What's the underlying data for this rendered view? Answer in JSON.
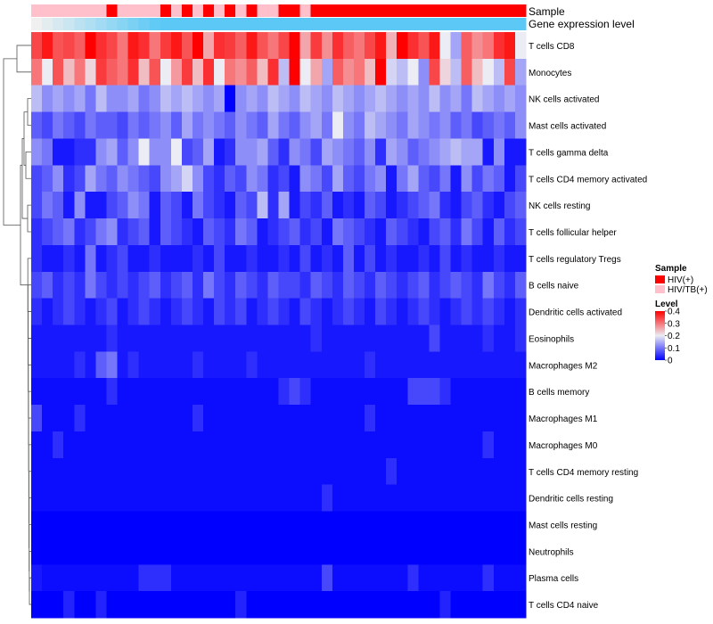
{
  "chart_data": {
    "type": "heatmap",
    "title": "",
    "annotation_tracks": [
      {
        "name": "Sample"
      },
      {
        "name": "Gene expression level"
      }
    ],
    "sample_groups": [
      "HIV/TB(+)",
      "HIV/TB(+)",
      "HIV/TB(+)",
      "HIV/TB(+)",
      "HIV/TB(+)",
      "HIV/TB(+)",
      "HIV/TB(+)",
      "HIV(+)",
      "HIV/TB(+)",
      "HIV/TB(+)",
      "HIV/TB(+)",
      "HIV/TB(+)",
      "HIV(+)",
      "HIV/TB(+)",
      "HIV(+)",
      "HIV/TB(+)",
      "HIV(+)",
      "HIV/TB(+)",
      "HIV(+)",
      "HIV/TB(+)",
      "HIV(+)",
      "HIV/TB(+)",
      "HIV/TB(+)",
      "HIV(+)",
      "HIV(+)",
      "HIV/TB(+)",
      "HIV(+)",
      "HIV(+)",
      "HIV(+)",
      "HIV(+)",
      "HIV(+)",
      "HIV(+)",
      "HIV(+)",
      "HIV(+)",
      "HIV(+)",
      "HIV(+)",
      "HIV(+)",
      "HIV(+)",
      "HIV(+)",
      "HIV(+)",
      "HIV(+)",
      "HIV(+)",
      "HIV(+)",
      "HIV(+)",
      "HIV(+)",
      "HIV(+)"
    ],
    "rows": [
      "T cells CD8",
      "Monocytes",
      "NK cells activated",
      "Mast cells activated",
      "T cells gamma delta",
      "T cells CD4 memory activated",
      "NK cells resting",
      "T cells follicular helper",
      "T cells regulatory  Tregs",
      "B cells naive",
      "Dendritic cells activated",
      "Eosinophils",
      "Macrophages M2",
      "B cells memory",
      "Macrophages M1",
      "Macrophages M0",
      "T cells CD4 memory resting",
      "Dendritic cells resting",
      "Mast cells resting",
      "Neutrophils",
      "Plasma cells",
      "T cells CD4 naive"
    ],
    "values": [
      [
        0.34,
        0.38,
        0.33,
        0.34,
        0.32,
        0.4,
        0.36,
        0.34,
        0.3,
        0.38,
        0.36,
        0.3,
        0.35,
        0.38,
        0.33,
        0.4,
        0.26,
        0.36,
        0.35,
        0.32,
        0.38,
        0.33,
        0.3,
        0.34,
        0.4,
        0.26,
        0.35,
        0.28,
        0.36,
        0.32,
        0.3,
        0.34,
        0.38,
        0.25,
        0.4,
        0.36,
        0.33,
        0.38,
        0.2,
        0.14,
        0.32,
        0.28,
        0.3,
        0.36,
        0.38,
        0.2
      ],
      [
        0.3,
        0.2,
        0.33,
        0.24,
        0.3,
        0.22,
        0.35,
        0.32,
        0.3,
        0.36,
        0.24,
        0.33,
        0.2,
        0.27,
        0.35,
        0.24,
        0.36,
        0.2,
        0.3,
        0.28,
        0.32,
        0.24,
        0.36,
        0.16,
        0.4,
        0.2,
        0.26,
        0.14,
        0.32,
        0.28,
        0.3,
        0.24,
        0.4,
        0.18,
        0.16,
        0.2,
        0.12,
        0.34,
        0.22,
        0.16,
        0.32,
        0.24,
        0.2,
        0.16,
        0.34,
        0.14
      ],
      [
        0.16,
        0.12,
        0.14,
        0.12,
        0.14,
        0.1,
        0.16,
        0.12,
        0.12,
        0.14,
        0.1,
        0.12,
        0.16,
        0.14,
        0.16,
        0.14,
        0.12,
        0.14,
        0.0,
        0.12,
        0.14,
        0.12,
        0.16,
        0.14,
        0.12,
        0.16,
        0.14,
        0.12,
        0.16,
        0.14,
        0.12,
        0.14,
        0.16,
        0.14,
        0.12,
        0.14,
        0.12,
        0.16,
        0.12,
        0.14,
        0.1,
        0.16,
        0.14,
        0.12,
        0.14,
        0.12
      ],
      [
        0.08,
        0.06,
        0.1,
        0.08,
        0.06,
        0.1,
        0.08,
        0.08,
        0.06,
        0.1,
        0.08,
        0.1,
        0.12,
        0.08,
        0.14,
        0.1,
        0.12,
        0.1,
        0.08,
        0.12,
        0.1,
        0.08,
        0.14,
        0.1,
        0.08,
        0.12,
        0.14,
        0.1,
        0.2,
        0.12,
        0.1,
        0.16,
        0.14,
        0.12,
        0.1,
        0.14,
        0.12,
        0.1,
        0.12,
        0.08,
        0.1,
        0.06,
        0.08,
        0.1,
        0.08,
        0.12
      ],
      [
        0.12,
        0.1,
        0.02,
        0.02,
        0.04,
        0.04,
        0.12,
        0.14,
        0.08,
        0.12,
        0.2,
        0.12,
        0.12,
        0.2,
        0.06,
        0.08,
        0.14,
        0.02,
        0.04,
        0.12,
        0.12,
        0.14,
        0.08,
        0.04,
        0.12,
        0.1,
        0.06,
        0.14,
        0.12,
        0.1,
        0.08,
        0.12,
        0.04,
        0.14,
        0.12,
        0.08,
        0.1,
        0.12,
        0.14,
        0.16,
        0.14,
        0.14,
        0.02,
        0.12,
        0.02,
        0.02
      ],
      [
        0.06,
        0.08,
        0.12,
        0.04,
        0.06,
        0.14,
        0.1,
        0.08,
        0.12,
        0.1,
        0.08,
        0.06,
        0.12,
        0.14,
        0.18,
        0.12,
        0.06,
        0.04,
        0.08,
        0.06,
        0.12,
        0.1,
        0.04,
        0.06,
        0.02,
        0.12,
        0.1,
        0.06,
        0.14,
        0.08,
        0.06,
        0.1,
        0.12,
        0.02,
        0.1,
        0.14,
        0.08,
        0.06,
        0.1,
        0.02,
        0.12,
        0.06,
        0.1,
        0.08,
        0.02,
        0.06
      ],
      [
        0.06,
        0.1,
        0.08,
        0.02,
        0.12,
        0.02,
        0.02,
        0.06,
        0.08,
        0.12,
        0.1,
        0.02,
        0.08,
        0.06,
        0.02,
        0.1,
        0.06,
        0.04,
        0.02,
        0.08,
        0.06,
        0.16,
        0.04,
        0.14,
        0.02,
        0.06,
        0.04,
        0.08,
        0.02,
        0.04,
        0.02,
        0.08,
        0.06,
        0.02,
        0.04,
        0.06,
        0.08,
        0.1,
        0.04,
        0.02,
        0.06,
        0.08,
        0.04,
        0.02,
        0.06,
        0.08
      ],
      [
        0.04,
        0.06,
        0.08,
        0.1,
        0.04,
        0.06,
        0.1,
        0.12,
        0.04,
        0.06,
        0.08,
        0.02,
        0.08,
        0.06,
        0.04,
        0.02,
        0.08,
        0.06,
        0.04,
        0.1,
        0.08,
        0.02,
        0.04,
        0.06,
        0.08,
        0.04,
        0.06,
        0.02,
        0.1,
        0.08,
        0.06,
        0.04,
        0.02,
        0.08,
        0.06,
        0.04,
        0.02,
        0.06,
        0.08,
        0.04,
        0.1,
        0.06,
        0.02,
        0.08,
        0.04,
        0.06
      ],
      [
        0.04,
        0.02,
        0.02,
        0.04,
        0.02,
        0.1,
        0.02,
        0.04,
        0.06,
        0.02,
        0.02,
        0.04,
        0.02,
        0.02,
        0.02,
        0.04,
        0.02,
        0.06,
        0.02,
        0.02,
        0.04,
        0.02,
        0.02,
        0.04,
        0.02,
        0.06,
        0.02,
        0.04,
        0.02,
        0.08,
        0.02,
        0.06,
        0.02,
        0.04,
        0.02,
        0.02,
        0.04,
        0.02,
        0.06,
        0.02,
        0.04,
        0.02,
        0.02,
        0.04,
        0.02,
        0.02
      ],
      [
        0.06,
        0.08,
        0.04,
        0.06,
        0.04,
        0.1,
        0.06,
        0.04,
        0.06,
        0.04,
        0.06,
        0.08,
        0.04,
        0.06,
        0.08,
        0.04,
        0.1,
        0.06,
        0.04,
        0.08,
        0.06,
        0.04,
        0.08,
        0.06,
        0.06,
        0.04,
        0.08,
        0.06,
        0.04,
        0.08,
        0.06,
        0.04,
        0.08,
        0.06,
        0.04,
        0.06,
        0.08,
        0.04,
        0.06,
        0.08,
        0.06,
        0.04,
        0.1,
        0.06,
        0.04,
        0.08
      ],
      [
        0.04,
        0.02,
        0.04,
        0.06,
        0.04,
        0.02,
        0.04,
        0.06,
        0.02,
        0.04,
        0.06,
        0.04,
        0.02,
        0.04,
        0.06,
        0.04,
        0.02,
        0.06,
        0.04,
        0.06,
        0.02,
        0.04,
        0.06,
        0.04,
        0.02,
        0.06,
        0.04,
        0.02,
        0.04,
        0.06,
        0.04,
        0.02,
        0.06,
        0.04,
        0.02,
        0.04,
        0.06,
        0.04,
        0.02,
        0.04,
        0.06,
        0.04,
        0.06,
        0.04,
        0.02,
        0.04
      ],
      [
        0.02,
        0.02,
        0.02,
        0.02,
        0.02,
        0.02,
        0.02,
        0.04,
        0.02,
        0.02,
        0.02,
        0.02,
        0.02,
        0.02,
        0.02,
        0.02,
        0.02,
        0.02,
        0.02,
        0.02,
        0.02,
        0.02,
        0.02,
        0.02,
        0.02,
        0.02,
        0.04,
        0.02,
        0.02,
        0.02,
        0.02,
        0.02,
        0.02,
        0.02,
        0.02,
        0.02,
        0.02,
        0.06,
        0.02,
        0.02,
        0.02,
        0.02,
        0.04,
        0.02,
        0.02,
        0.04
      ],
      [
        0.02,
        0.02,
        0.02,
        0.02,
        0.04,
        0.02,
        0.08,
        0.1,
        0.02,
        0.04,
        0.02,
        0.02,
        0.02,
        0.02,
        0.02,
        0.04,
        0.02,
        0.02,
        0.02,
        0.02,
        0.04,
        0.02,
        0.02,
        0.02,
        0.02,
        0.02,
        0.02,
        0.02,
        0.02,
        0.02,
        0.02,
        0.04,
        0.02,
        0.02,
        0.02,
        0.02,
        0.02,
        0.02,
        0.02,
        0.02,
        0.02,
        0.02,
        0.02,
        0.02,
        0.02,
        0.02
      ],
      [
        0.01,
        0.01,
        0.01,
        0.01,
        0.01,
        0.01,
        0.01,
        0.04,
        0.01,
        0.01,
        0.01,
        0.01,
        0.01,
        0.01,
        0.01,
        0.01,
        0.01,
        0.01,
        0.01,
        0.01,
        0.01,
        0.01,
        0.01,
        0.04,
        0.06,
        0.04,
        0.01,
        0.01,
        0.01,
        0.01,
        0.01,
        0.01,
        0.01,
        0.01,
        0.01,
        0.06,
        0.06,
        0.06,
        0.04,
        0.01,
        0.01,
        0.01,
        0.01,
        0.01,
        0.01,
        0.01
      ],
      [
        0.06,
        0.01,
        0.01,
        0.01,
        0.04,
        0.01,
        0.01,
        0.01,
        0.01,
        0.01,
        0.01,
        0.01,
        0.01,
        0.01,
        0.01,
        0.04,
        0.01,
        0.01,
        0.01,
        0.01,
        0.01,
        0.01,
        0.01,
        0.01,
        0.01,
        0.01,
        0.01,
        0.01,
        0.01,
        0.01,
        0.01,
        0.04,
        0.01,
        0.01,
        0.01,
        0.01,
        0.01,
        0.01,
        0.01,
        0.01,
        0.01,
        0.01,
        0.01,
        0.01,
        0.01,
        0.01
      ],
      [
        0.01,
        0.01,
        0.04,
        0.01,
        0.01,
        0.01,
        0.01,
        0.01,
        0.01,
        0.01,
        0.01,
        0.01,
        0.01,
        0.01,
        0.01,
        0.01,
        0.01,
        0.01,
        0.01,
        0.01,
        0.01,
        0.01,
        0.01,
        0.01,
        0.01,
        0.01,
        0.01,
        0.01,
        0.01,
        0.01,
        0.01,
        0.01,
        0.01,
        0.01,
        0.01,
        0.01,
        0.01,
        0.01,
        0.01,
        0.01,
        0.01,
        0.01,
        0.04,
        0.01,
        0.01,
        0.01
      ],
      [
        0.01,
        0.01,
        0.01,
        0.01,
        0.01,
        0.01,
        0.01,
        0.01,
        0.01,
        0.01,
        0.01,
        0.01,
        0.01,
        0.01,
        0.01,
        0.01,
        0.01,
        0.01,
        0.01,
        0.01,
        0.01,
        0.01,
        0.01,
        0.01,
        0.01,
        0.01,
        0.01,
        0.01,
        0.01,
        0.01,
        0.01,
        0.01,
        0.01,
        0.04,
        0.01,
        0.01,
        0.01,
        0.01,
        0.01,
        0.01,
        0.01,
        0.01,
        0.01,
        0.01,
        0.01,
        0.01
      ],
      [
        0.01,
        0.01,
        0.01,
        0.01,
        0.01,
        0.01,
        0.01,
        0.01,
        0.01,
        0.01,
        0.01,
        0.01,
        0.01,
        0.01,
        0.01,
        0.01,
        0.01,
        0.01,
        0.01,
        0.01,
        0.01,
        0.01,
        0.01,
        0.01,
        0.01,
        0.01,
        0.01,
        0.04,
        0.01,
        0.01,
        0.01,
        0.01,
        0.01,
        0.01,
        0.01,
        0.01,
        0.01,
        0.01,
        0.01,
        0.01,
        0.01,
        0.01,
        0.01,
        0.01,
        0.01,
        0.01
      ],
      [
        0.0,
        0.0,
        0.0,
        0.0,
        0.0,
        0.0,
        0.0,
        0.0,
        0.0,
        0.0,
        0.0,
        0.0,
        0.0,
        0.0,
        0.0,
        0.0,
        0.0,
        0.0,
        0.0,
        0.0,
        0.0,
        0.0,
        0.0,
        0.0,
        0.0,
        0.0,
        0.0,
        0.0,
        0.0,
        0.0,
        0.0,
        0.0,
        0.0,
        0.0,
        0.0,
        0.0,
        0.0,
        0.0,
        0.0,
        0.0,
        0.0,
        0.0,
        0.0,
        0.0,
        0.0,
        0.0
      ],
      [
        0.0,
        0.0,
        0.0,
        0.0,
        0.0,
        0.0,
        0.0,
        0.0,
        0.0,
        0.0,
        0.0,
        0.0,
        0.0,
        0.0,
        0.0,
        0.0,
        0.0,
        0.0,
        0.0,
        0.0,
        0.0,
        0.0,
        0.0,
        0.0,
        0.0,
        0.0,
        0.0,
        0.0,
        0.0,
        0.0,
        0.0,
        0.0,
        0.0,
        0.0,
        0.0,
        0.0,
        0.0,
        0.0,
        0.0,
        0.0,
        0.0,
        0.0,
        0.0,
        0.0,
        0.0,
        0.0
      ],
      [
        0.02,
        0.01,
        0.01,
        0.01,
        0.01,
        0.01,
        0.01,
        0.01,
        0.01,
        0.01,
        0.04,
        0.04,
        0.04,
        0.01,
        0.01,
        0.01,
        0.01,
        0.01,
        0.01,
        0.01,
        0.01,
        0.01,
        0.01,
        0.01,
        0.01,
        0.01,
        0.01,
        0.06,
        0.01,
        0.01,
        0.01,
        0.01,
        0.01,
        0.01,
        0.01,
        0.04,
        0.01,
        0.01,
        0.01,
        0.01,
        0.01,
        0.01,
        0.04,
        0.01,
        0.01,
        0.01
      ],
      [
        0.0,
        0.0,
        0.0,
        0.03,
        0.0,
        0.0,
        0.03,
        0.0,
        0.0,
        0.0,
        0.0,
        0.0,
        0.0,
        0.0,
        0.0,
        0.0,
        0.0,
        0.0,
        0.0,
        0.03,
        0.0,
        0.0,
        0.0,
        0.0,
        0.0,
        0.0,
        0.0,
        0.0,
        0.0,
        0.0,
        0.0,
        0.0,
        0.0,
        0.0,
        0.0,
        0.0,
        0.0,
        0.0,
        0.03,
        0.0,
        0.0,
        0.0,
        0.0,
        0.0,
        0.0,
        0.0
      ]
    ],
    "color_scale": {
      "min": 0,
      "max": 0.4,
      "low": "#0000ff",
      "mid": "#ececf4",
      "high": "#ff0000",
      "mid_value": 0.2
    },
    "legend": {
      "sample_title": "Sample",
      "items": [
        {
          "label": "HIV(+)",
          "color": "#ff0000"
        },
        {
          "label": "HIV/TB(+)",
          "color": "#ffc0cb"
        }
      ],
      "level_title": "Level",
      "ticks": [
        {
          "value": 0.4,
          "label": "0.4"
        },
        {
          "value": 0.3,
          "label": "0.3"
        },
        {
          "value": 0.2,
          "label": "0.2"
        },
        {
          "value": 0.1,
          "label": "0.1"
        },
        {
          "value": 0,
          "label": "0"
        }
      ],
      "position": "right"
    },
    "gene_expression_color": "#5bc8f5"
  }
}
